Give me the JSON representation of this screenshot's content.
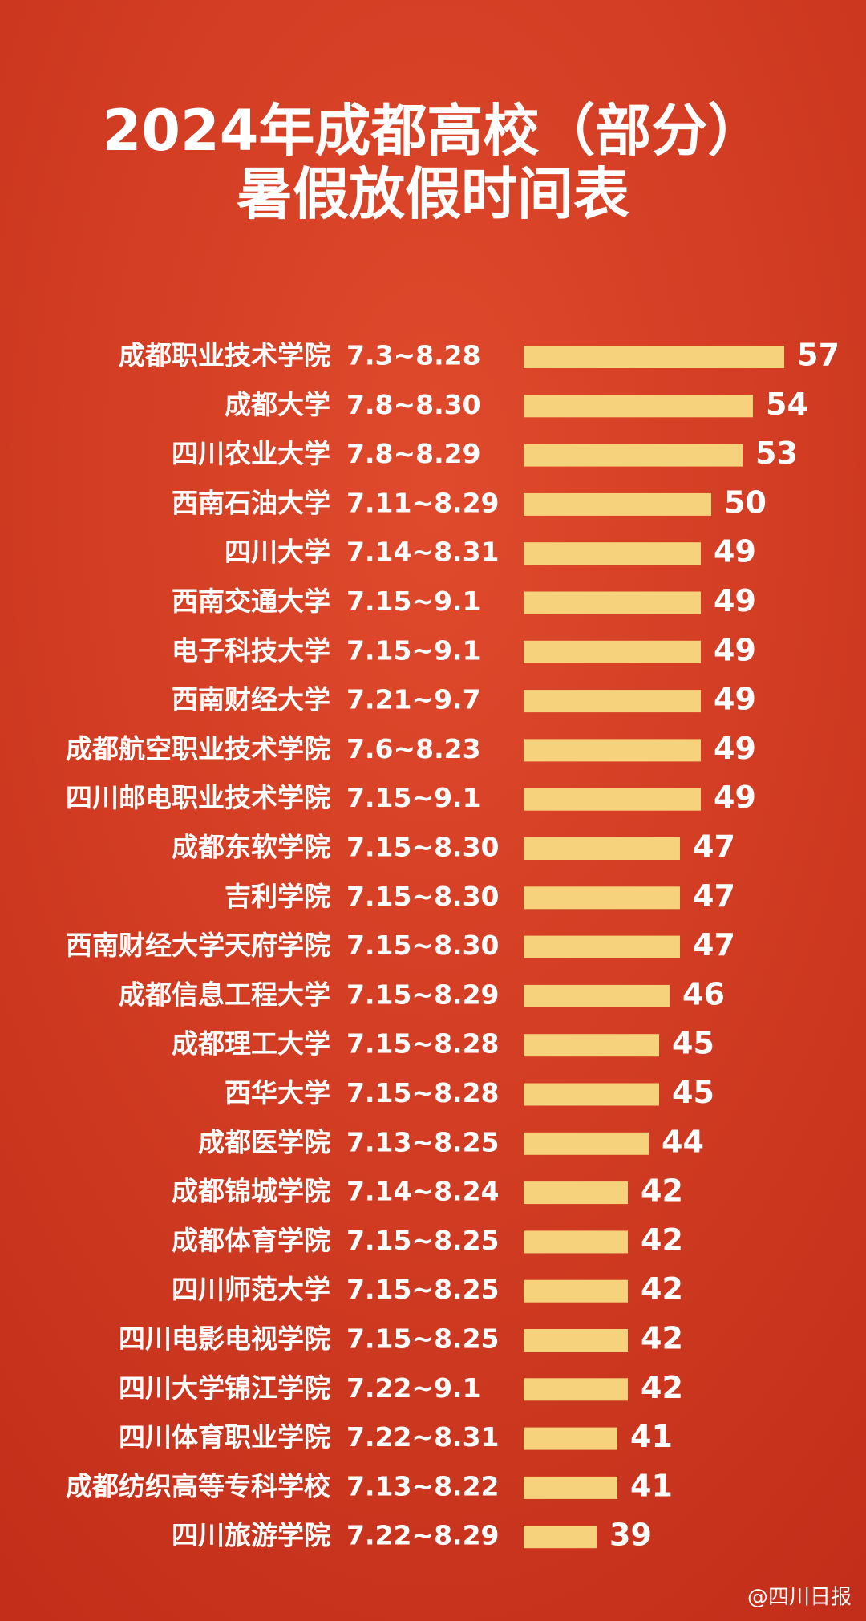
{
  "chart_data": {
    "type": "hbar",
    "title_lines": [
      "2024年成都高校（部分）",
      "暑假放假时间表"
    ],
    "categories": [
      "成都职业技术学院",
      "成都大学",
      "四川农业大学",
      "西南石油大学",
      "四川大学",
      "西南交通大学",
      "电子科技大学",
      "西南财经大学",
      "成都航空职业技术学院",
      "四川邮电职业技术学院",
      "成都东软学院",
      "吉利学院",
      "西南财经大学天府学院",
      "成都信息工程大学",
      "成都理工大学",
      "西华大学",
      "成都医学院",
      "成都锦城学院",
      "成都体育学院",
      "四川师范大学",
      "四川电影电视学院",
      "四川大学锦江学院",
      "四川体育职业学院",
      "成都纺织高等专科学校",
      "四川旅游学院"
    ],
    "date_ranges": [
      "7.3~8.28",
      "7.8~8.30",
      "7.8~8.29",
      "7.11~8.29",
      "7.14~8.31",
      "7.15~9.1",
      "7.15~9.1",
      "7.21~9.7",
      "7.6~8.23",
      "7.15~9.1",
      "7.15~8.30",
      "7.15~8.30",
      "7.15~8.30",
      "7.15~8.29",
      "7.15~8.28",
      "7.15~8.28",
      "7.13~8.25",
      "7.14~8.24",
      "7.15~8.25",
      "7.15~8.25",
      "7.15~8.25",
      "7.22~9.1",
      "7.22~8.31",
      "7.13~8.22",
      "7.22~8.29"
    ],
    "values": [
      57,
      54,
      53,
      50,
      49,
      49,
      49,
      49,
      49,
      49,
      47,
      47,
      47,
      46,
      45,
      45,
      44,
      42,
      42,
      42,
      42,
      42,
      41,
      41,
      39
    ],
    "color": "#f7d27c",
    "xlim": [
      32,
      60
    ],
    "source": "@四川日报"
  }
}
